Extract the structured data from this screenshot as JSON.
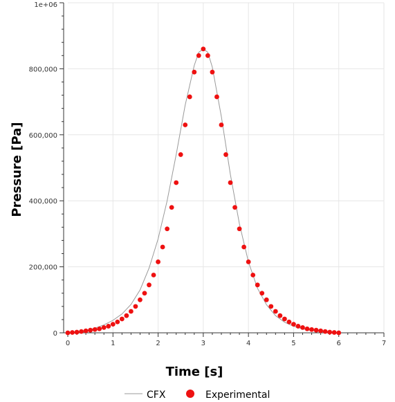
{
  "chart_data": {
    "type": "scatter",
    "title": "",
    "xlabel": "Time [s]",
    "ylabel": "Pressure [Pa]",
    "xlim": [
      0,
      7
    ],
    "ylim": [
      0,
      1000000
    ],
    "x_ticks": [
      0,
      1,
      2,
      3,
      4,
      5,
      6,
      7
    ],
    "x_tick_labels": [
      "0",
      "1",
      "2",
      "3",
      "4",
      "5",
      "6",
      "7"
    ],
    "y_ticks": [
      0,
      200000,
      400000,
      600000,
      800000,
      1000000
    ],
    "y_tick_labels": [
      "0",
      "200,000",
      "400,000",
      "600,000",
      "800,000",
      "1e+06"
    ],
    "grid": true,
    "legend_position": "bottom-center",
    "series": [
      {
        "name": "CFX",
        "kind": "line",
        "color": "#999999",
        "x": [
          0,
          0.2,
          0.4,
          0.6,
          0.8,
          1.0,
          1.2,
          1.4,
          1.6,
          1.8,
          2.0,
          2.2,
          2.4,
          2.6,
          2.8,
          2.9,
          3.0,
          3.1,
          3.2,
          3.4,
          3.6,
          3.8,
          4.0,
          4.2,
          4.4,
          4.6,
          4.8,
          5.0,
          5.2,
          5.4,
          5.6,
          5.8,
          6.0
        ],
        "y": [
          1000,
          3000,
          7000,
          14000,
          24000,
          38000,
          57000,
          86000,
          130000,
          196000,
          285000,
          400000,
          540000,
          690000,
          810000,
          850000,
          860000,
          850000,
          805000,
          655000,
          480000,
          330000,
          215000,
          135000,
          85000,
          52000,
          32000,
          20000,
          12000,
          7000,
          4000,
          2000,
          1000
        ]
      },
      {
        "name": "Experimental",
        "kind": "scatter",
        "color": "#ee1111",
        "x": [
          0,
          0.1,
          0.2,
          0.3,
          0.4,
          0.5,
          0.6,
          0.7,
          0.8,
          0.9,
          1.0,
          1.1,
          1.2,
          1.3,
          1.4,
          1.5,
          1.6,
          1.7,
          1.8,
          1.9,
          2.0,
          2.1,
          2.2,
          2.3,
          2.4,
          2.5,
          2.6,
          2.7,
          2.8,
          2.9,
          3.0,
          3.1,
          3.2,
          3.3,
          3.4,
          3.5,
          3.6,
          3.7,
          3.8,
          3.9,
          4.0,
          4.1,
          4.2,
          4.3,
          4.4,
          4.5,
          4.6,
          4.7,
          4.8,
          4.9,
          5.0,
          5.1,
          5.2,
          5.3,
          5.4,
          5.5,
          5.6,
          5.7,
          5.8,
          5.9,
          6.0
        ],
        "y": [
          0,
          1000,
          2000,
          4000,
          6000,
          8000,
          10000,
          12000,
          16000,
          20000,
          26000,
          33000,
          42000,
          52000,
          65000,
          80000,
          100000,
          120000,
          145000,
          175000,
          215000,
          260000,
          315000,
          380000,
          455000,
          540000,
          630000,
          715000,
          790000,
          840000,
          860000,
          840000,
          790000,
          715000,
          630000,
          540000,
          455000,
          380000,
          315000,
          260000,
          215000,
          175000,
          145000,
          120000,
          100000,
          80000,
          65000,
          52000,
          42000,
          33000,
          26000,
          20000,
          16000,
          12000,
          10000,
          8000,
          6000,
          4000,
          2000,
          1000,
          0
        ]
      }
    ]
  }
}
